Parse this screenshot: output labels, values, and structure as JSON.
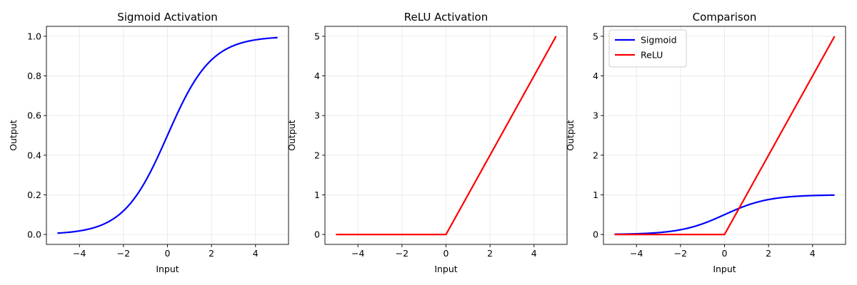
{
  "colors": {
    "sigmoid": "#0000ff",
    "relu": "#ff0000",
    "grid": "#b0b0b0",
    "axes": "#000000"
  },
  "chart_data": [
    {
      "type": "line",
      "title": "Sigmoid Activation",
      "xlabel": "Input",
      "ylabel": "Output",
      "xlim": [
        -5.5,
        5.5
      ],
      "ylim": [
        -0.05,
        1.05
      ],
      "xticks": [
        -4,
        -2,
        0,
        2,
        4
      ],
      "xtick_labels": [
        "−4",
        "−2",
        "0",
        "2",
        "4"
      ],
      "yticks": [
        0.0,
        0.2,
        0.4,
        0.6,
        0.8,
        1.0
      ],
      "ytick_labels": [
        "0.0",
        "0.2",
        "0.4",
        "0.6",
        "0.8",
        "1.0"
      ],
      "grid": true,
      "legend": null,
      "series": [
        {
          "function": "sigmoid",
          "color_key": "sigmoid",
          "x_range": [
            -5,
            5
          ],
          "samples": 201
        }
      ]
    },
    {
      "type": "line",
      "title": "ReLU Activation",
      "xlabel": "Input",
      "ylabel": "Output",
      "xlim": [
        -5.5,
        5.5
      ],
      "ylim": [
        -0.25,
        5.25
      ],
      "xticks": [
        -4,
        -2,
        0,
        2,
        4
      ],
      "xtick_labels": [
        "−4",
        "−2",
        "0",
        "2",
        "4"
      ],
      "yticks": [
        0,
        1,
        2,
        3,
        4,
        5
      ],
      "ytick_labels": [
        "0",
        "1",
        "2",
        "3",
        "4",
        "5"
      ],
      "grid": true,
      "legend": null,
      "series": [
        {
          "function": "relu",
          "color_key": "relu",
          "x_range": [
            -5,
            5
          ],
          "samples": 201
        }
      ]
    },
    {
      "type": "line",
      "title": "Comparison",
      "xlabel": "Input",
      "ylabel": "Output",
      "xlim": [
        -5.5,
        5.5
      ],
      "ylim": [
        -0.25,
        5.25
      ],
      "xticks": [
        -4,
        -2,
        0,
        2,
        4
      ],
      "xtick_labels": [
        "−4",
        "−2",
        "0",
        "2",
        "4"
      ],
      "yticks": [
        0,
        1,
        2,
        3,
        4,
        5
      ],
      "ytick_labels": [
        "0",
        "1",
        "2",
        "3",
        "4",
        "5"
      ],
      "grid": true,
      "legend": "top-left",
      "series": [
        {
          "name": "Sigmoid",
          "function": "sigmoid",
          "color_key": "sigmoid",
          "x_range": [
            -5,
            5
          ],
          "samples": 201
        },
        {
          "name": "ReLU",
          "function": "relu",
          "color_key": "relu",
          "x_range": [
            -5,
            5
          ],
          "samples": 201
        }
      ]
    }
  ]
}
